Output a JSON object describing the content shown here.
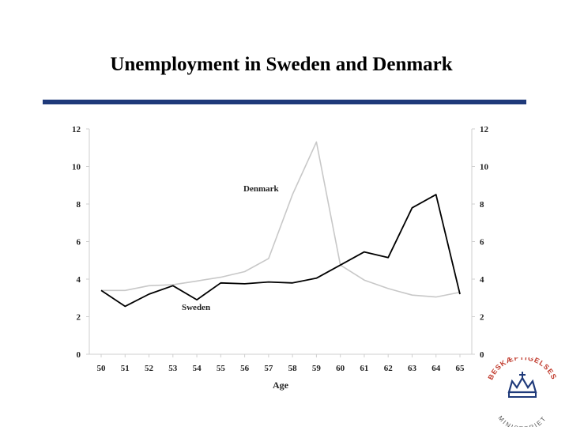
{
  "slide": {
    "title": "Unemployment in Sweden and Denmark",
    "rule_color": "#1f3a7a"
  },
  "logo": {
    "text_top": "BESKÆFTIGELSES",
    "text_bottom": "MINISTERIET",
    "icon": "crown-icon",
    "color": "#c0392b"
  },
  "chart_data": {
    "type": "line",
    "x": [
      50,
      51,
      52,
      53,
      54,
      55,
      56,
      57,
      58,
      59,
      60,
      61,
      62,
      63,
      64,
      65
    ],
    "xlabel": "Age",
    "ylabel": "",
    "ylabel_right": "",
    "ylim": [
      0,
      12
    ],
    "yticks": [
      0,
      2,
      4,
      6,
      8,
      10,
      12
    ],
    "grid": false,
    "series": [
      {
        "name": "Sweden",
        "color": "#000000",
        "values": [
          3.4,
          2.55,
          3.2,
          3.65,
          2.9,
          3.8,
          3.75,
          3.85,
          3.8,
          4.05,
          4.75,
          5.45,
          5.15,
          7.8,
          8.5,
          3.2
        ]
      },
      {
        "name": "Denmark",
        "color": "#c8c8c8",
        "values": [
          3.4,
          3.4,
          3.65,
          3.7,
          3.9,
          4.1,
          4.4,
          5.1,
          8.5,
          11.3,
          4.75,
          3.95,
          3.5,
          3.15,
          3.05,
          3.3
        ]
      }
    ]
  }
}
